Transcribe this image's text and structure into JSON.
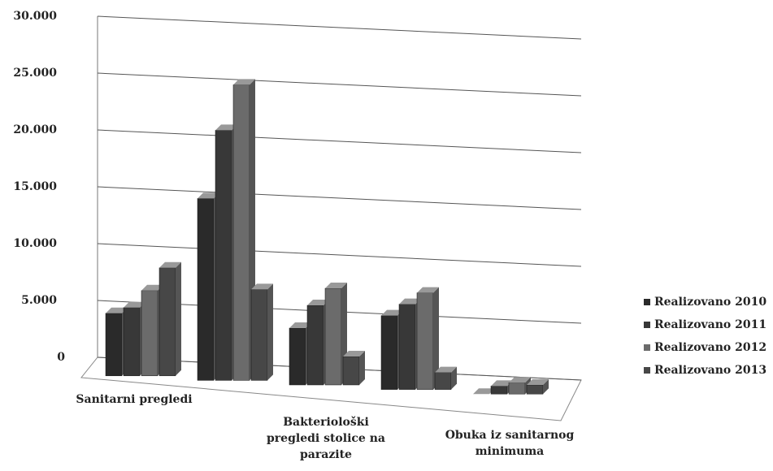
{
  "chart_data": {
    "type": "bar",
    "categories": [
      "Sanitarni pregledi",
      null,
      "Bakteriološki pregledi stolice na parazite",
      null,
      "Obuka iz sanitarnog minimuma"
    ],
    "series": [
      {
        "name": "Realizovano 2010",
        "color": "#2a2a2a",
        "values": [
          5500,
          16000,
          5000,
          6500,
          0
        ]
      },
      {
        "name": "Realizovano 2011",
        "color": "#383838",
        "values": [
          6000,
          22000,
          7000,
          7500,
          700
        ]
      },
      {
        "name": "Realizovano 2012",
        "color": "#6b6b6b",
        "values": [
          7500,
          26000,
          8500,
          8500,
          1000
        ]
      },
      {
        "name": "Realizovano 2013",
        "color": "#474747",
        "values": [
          9500,
          8000,
          2500,
          1500,
          800
        ]
      }
    ],
    "ylim": [
      0,
      30000
    ],
    "yticks": [
      0,
      {
        "value": 5000,
        "label": "5.000"
      },
      {
        "value": 10000,
        "label": "10.000"
      },
      {
        "value": 15000,
        "label": "15.000"
      },
      {
        "value": 20000,
        "label": "20.000"
      },
      {
        "value": 25000,
        "label": "25.000"
      },
      {
        "value": 30000,
        "label": "30.000"
      }
    ],
    "grid": true
  }
}
